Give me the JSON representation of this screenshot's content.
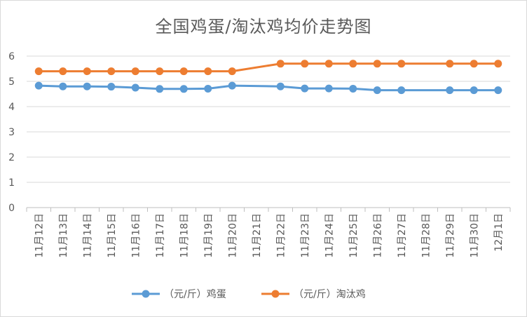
{
  "chart_data": {
    "type": "line",
    "title": "全国鸡蛋/淘汰鸡均价走势图",
    "xlabel": "",
    "ylabel": "",
    "ylim": [
      0,
      6
    ],
    "yticks": [
      "0",
      "1",
      "2",
      "3",
      "4",
      "5",
      "6"
    ],
    "grid": "horizontal",
    "legend_position": "bottom",
    "categories": [
      "11月12日",
      "11月13日",
      "11月14日",
      "11月15日",
      "11月16日",
      "11月17日",
      "11月18日",
      "11月19日",
      "11月20日",
      "11月21日",
      "11月22日",
      "11月23日",
      "11月24日",
      "11月25日",
      "11月26日",
      "11月27日",
      "11月28日",
      "11月29日",
      "11月30日",
      "12月1日"
    ],
    "series": [
      {
        "name": "（元/斤）鸡蛋",
        "color": "#5b9bd5",
        "values": [
          4.83,
          4.8,
          4.8,
          4.79,
          4.75,
          4.7,
          4.7,
          4.71,
          4.83,
          null,
          4.8,
          4.72,
          4.72,
          4.71,
          4.65,
          4.65,
          null,
          4.65,
          4.65,
          4.65
        ]
      },
      {
        "name": "（元/斤）淘汰鸡",
        "color": "#ed7d31",
        "values": [
          5.4,
          5.4,
          5.4,
          5.4,
          5.4,
          5.4,
          5.4,
          5.4,
          5.4,
          null,
          5.7,
          5.7,
          5.7,
          5.7,
          5.7,
          5.7,
          null,
          5.7,
          5.7,
          5.7
        ]
      }
    ]
  }
}
